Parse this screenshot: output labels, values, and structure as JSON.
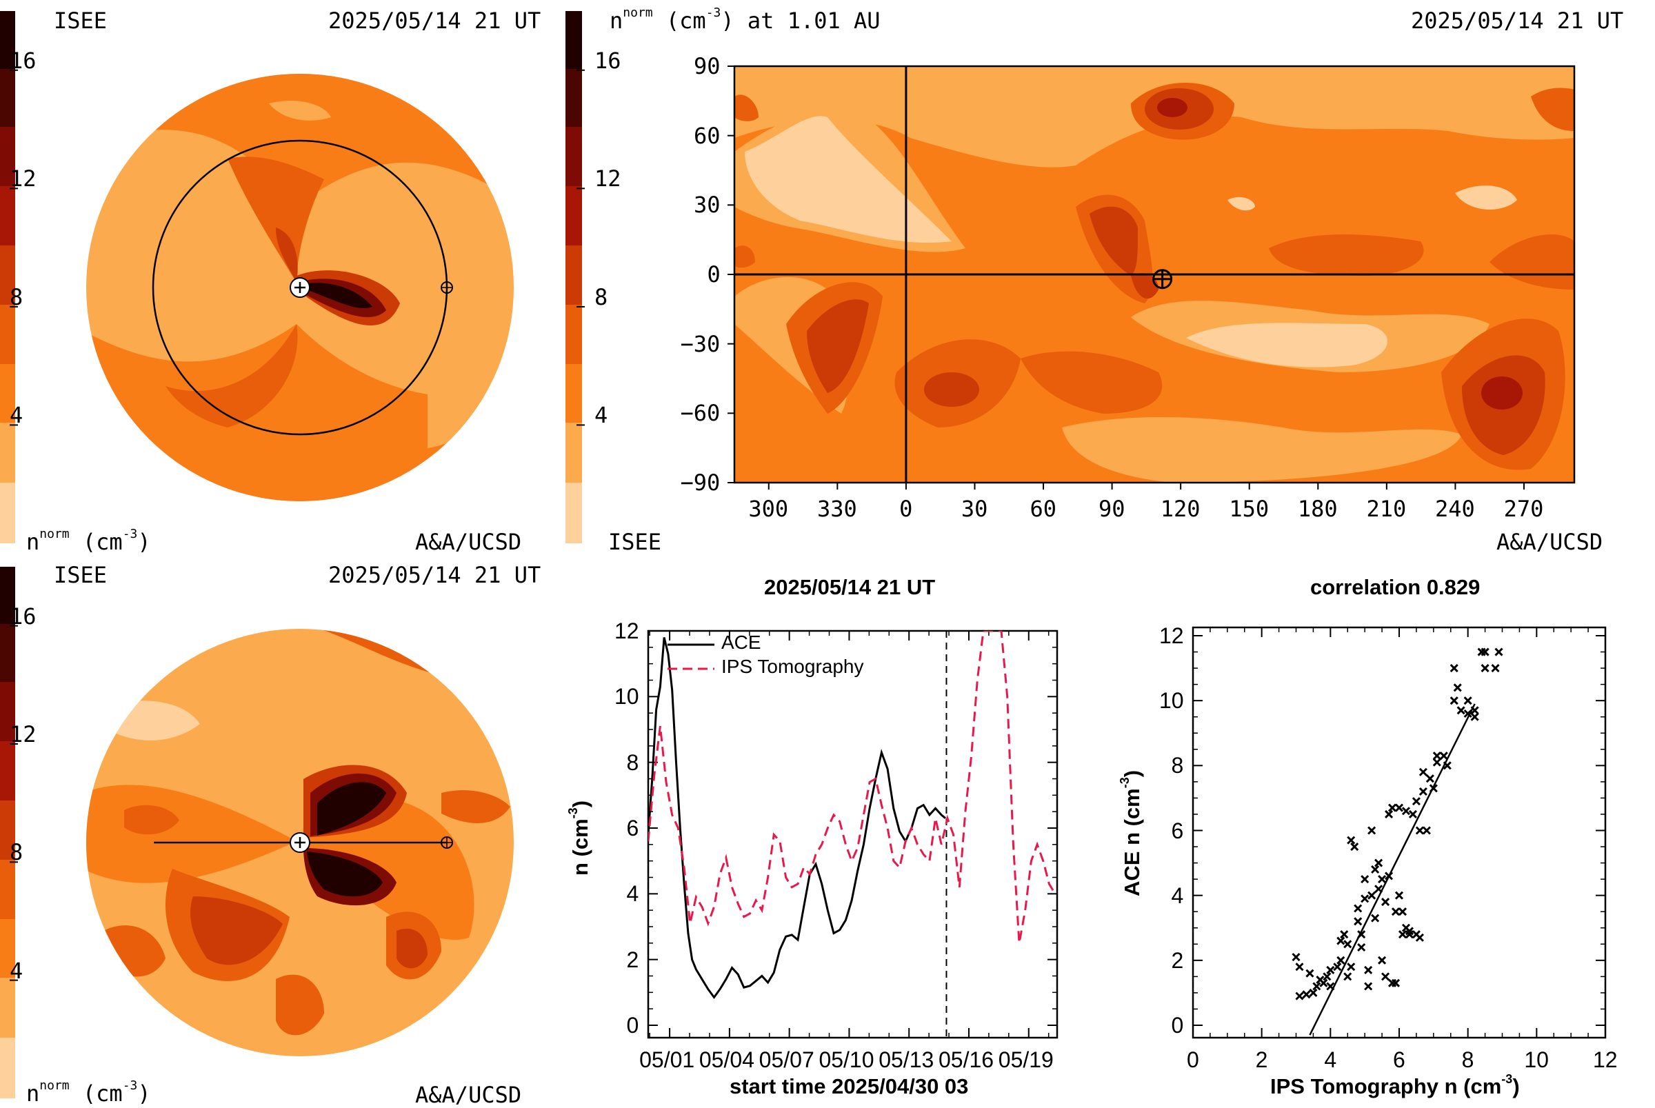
{
  "colors": {
    "levels": [
      "#fdd09c",
      "#fcaa4e",
      "#f97d16",
      "#e85e0a",
      "#cc3a06",
      "#a81606",
      "#7e0c04",
      "#4c0602",
      "#200100"
    ],
    "level_step_cm3": 2
  },
  "panel_top_left": {
    "org": "ISEE",
    "timestamp": "2025/05/14 21 UT",
    "credit": "A&A/UCSD",
    "colorbar_ticks": [
      "16",
      "12",
      "8",
      "4"
    ],
    "colorbar_tick_values": [
      16,
      12,
      8,
      4
    ],
    "colorbar_label_main": "n",
    "colorbar_label_sup": "norm",
    "colorbar_label_unit": "(cm",
    "colorbar_label_unit_sup": "-3",
    "colorbar_label_end": ")"
  },
  "panel_top_right": {
    "title_main": "n",
    "title_sup": "norm",
    "title_unit": "(cm",
    "title_unit_sup": "-3",
    "title_end": ") at 1.01 AU",
    "timestamp": "2025/05/14 21 UT",
    "org": "ISEE",
    "credit": "A&A/UCSD",
    "colorbar_ticks": [
      "16",
      "12",
      "8",
      "4"
    ],
    "colorbar_tick_values": [
      16,
      12,
      8,
      4
    ],
    "y_ticks": [
      "90",
      "60",
      "30",
      "0",
      "−30",
      "−60",
      "−90"
    ],
    "y_tick_values": [
      90,
      60,
      30,
      0,
      -30,
      -60,
      -90
    ],
    "x_ticks": [
      "300",
      "330",
      "0",
      "30",
      "60",
      "90",
      "120",
      "150",
      "180",
      "210",
      "240",
      "270"
    ],
    "x_tick_values": [
      300,
      330,
      360,
      390,
      420,
      450,
      480,
      510,
      540,
      570,
      600,
      630
    ],
    "earth_longitude": 112,
    "earth_latitude": -2,
    "vertical_line_longitude": 360
  },
  "panel_bottom_left": {
    "org": "ISEE",
    "timestamp": "2025/05/14 21 UT",
    "credit": "A&A/UCSD",
    "colorbar_ticks": [
      "16",
      "12",
      "8",
      "4"
    ],
    "colorbar_tick_values": [
      16,
      12,
      8,
      4
    ],
    "colorbar_label_main": "n",
    "colorbar_label_sup": "norm",
    "colorbar_label_unit": "(cm",
    "colorbar_label_unit_sup": "-3",
    "colorbar_label_end": ")"
  },
  "chart_data": [
    {
      "type": "line",
      "title": "2025/05/14 21 UT",
      "xlabel": "start time 2025/04/30 03",
      "ylabel_main": "n (cm",
      "ylabel_sup": "-3",
      "ylabel_end": ")",
      "xlim": [
        -0.2,
        20.3
      ],
      "ylim": [
        0,
        12
      ],
      "x_ticks": [
        "05/01",
        "05/04",
        "05/07",
        "05/10",
        "05/13",
        "05/16",
        "05/19"
      ],
      "x_tick_values": [
        0.875,
        3.875,
        6.875,
        9.875,
        12.875,
        15.875,
        18.875
      ],
      "y_ticks": [
        "12",
        "10",
        "8",
        "6",
        "4",
        "2",
        "0"
      ],
      "y_tick_values": [
        12,
        10,
        8,
        6,
        4,
        2,
        0
      ],
      "current_time_marker_x": 14.75,
      "legend": "top-left",
      "series": [
        {
          "name": "ACE",
          "style": "solid",
          "color": "#000000",
          "x": [
            -0.2,
            0.0,
            0.2,
            0.4,
            0.6,
            0.8,
            1.0,
            1.2,
            1.4,
            1.6,
            1.8,
            2.0,
            2.2,
            2.5,
            2.8,
            3.1,
            3.4,
            3.7,
            4.0,
            4.3,
            4.6,
            4.9,
            5.2,
            5.5,
            5.8,
            6.1,
            6.4,
            6.7,
            7.0,
            7.3,
            7.6,
            7.9,
            8.2,
            8.5,
            8.8,
            9.1,
            9.4,
            9.7,
            10.0,
            10.3,
            10.6,
            10.9,
            11.2,
            11.5,
            11.8,
            12.1,
            12.4,
            12.7,
            13.0,
            13.3,
            13.6,
            13.9,
            14.2,
            14.5,
            14.7
          ],
          "y": [
            5.8,
            7.5,
            9.6,
            10.3,
            11.8,
            11.3,
            10.2,
            8.0,
            6.0,
            4.3,
            2.8,
            2.0,
            1.7,
            1.4,
            1.1,
            0.85,
            1.1,
            1.4,
            1.75,
            1.55,
            1.15,
            1.2,
            1.35,
            1.5,
            1.3,
            1.6,
            2.3,
            2.7,
            2.75,
            2.6,
            3.6,
            4.6,
            4.9,
            4.3,
            3.5,
            2.8,
            2.9,
            3.2,
            3.8,
            4.7,
            5.5,
            6.6,
            7.5,
            8.3,
            7.8,
            6.6,
            5.9,
            5.6,
            6.0,
            6.6,
            6.7,
            6.4,
            6.6,
            6.4,
            6.3
          ],
          "note_range": "values from 05/01 to 05/14 21 UT"
        },
        {
          "name": "IPS Tomography",
          "style": "dashed",
          "color": "#e8194a",
          "x": [
            -0.2,
            0.1,
            0.4,
            0.7,
            1.0,
            1.3,
            1.6,
            1.9,
            2.2,
            2.5,
            2.8,
            3.1,
            3.4,
            3.7,
            4.0,
            4.3,
            4.6,
            4.9,
            5.2,
            5.5,
            5.8,
            6.1,
            6.4,
            6.7,
            7.0,
            7.3,
            7.6,
            7.9,
            8.2,
            8.5,
            8.8,
            9.1,
            9.4,
            9.7,
            10.0,
            10.3,
            10.6,
            10.9,
            11.2,
            11.5,
            11.8,
            12.1,
            12.4,
            12.7,
            13.0,
            13.3,
            13.6,
            13.9,
            14.2,
            14.5,
            14.8,
            15.1,
            15.4,
            15.7,
            16.0,
            16.3,
            16.6,
            16.9,
            17.2,
            17.5,
            17.8,
            18.1,
            18.4,
            18.7,
            19.0,
            19.3,
            19.6,
            19.9,
            20.2
          ],
          "y": [
            5.6,
            7.6,
            9.1,
            7.4,
            6.4,
            6.0,
            4.8,
            3.1,
            3.9,
            3.6,
            3.1,
            3.6,
            4.6,
            5.1,
            4.2,
            3.7,
            3.3,
            3.4,
            3.8,
            3.5,
            4.5,
            5.8,
            5.6,
            4.5,
            4.2,
            4.3,
            4.8,
            4.6,
            5.2,
            5.5,
            6.0,
            6.4,
            6.2,
            5.5,
            5.0,
            5.4,
            6.4,
            7.4,
            7.5,
            6.7,
            6.0,
            5.0,
            4.8,
            5.6,
            6.0,
            5.5,
            5.2,
            5.0,
            6.3,
            5.5,
            6.3,
            5.8,
            4.2,
            6.5,
            8.2,
            10.5,
            12.0,
            12.0,
            12.0,
            12.0,
            10.0,
            5.5,
            2.5,
            3.5,
            5.0,
            5.5,
            5.0,
            4.3,
            4.0
          ]
        }
      ]
    },
    {
      "type": "scatter",
      "title": "correlation 0.829",
      "xlabel_main": "IPS Tomography n (cm",
      "xlabel_sup": "-3",
      "xlabel_end": ")",
      "ylabel_main": "ACE n (cm",
      "ylabel_sup": "-3",
      "ylabel_end": ")",
      "xlim": [
        0,
        12
      ],
      "ylim": [
        0,
        12
      ],
      "x_ticks": [
        "0",
        "2",
        "4",
        "6",
        "8",
        "10",
        "12"
      ],
      "x_tick_values": [
        0,
        2,
        4,
        6,
        8,
        10,
        12
      ],
      "y_ticks": [
        "12",
        "10",
        "8",
        "6",
        "4",
        "2",
        "0"
      ],
      "y_tick_values": [
        12,
        10,
        8,
        6,
        4,
        2,
        0
      ],
      "fit_line": {
        "x": [
          3.4,
          8.2
        ],
        "y": [
          -0.3,
          9.9
        ]
      },
      "points": [
        [
          3.0,
          2.1
        ],
        [
          3.1,
          1.8
        ],
        [
          3.1,
          0.9
        ],
        [
          3.3,
          0.95
        ],
        [
          3.5,
          1.0
        ],
        [
          3.4,
          1.6
        ],
        [
          3.6,
          1.2
        ],
        [
          3.7,
          1.4
        ],
        [
          3.8,
          1.3
        ],
        [
          3.9,
          1.5
        ],
        [
          4.0,
          1.7
        ],
        [
          4.0,
          1.2
        ],
        [
          4.2,
          1.8
        ],
        [
          4.3,
          2.6
        ],
        [
          4.3,
          2.0
        ],
        [
          4.4,
          2.8
        ],
        [
          4.5,
          2.5
        ],
        [
          4.5,
          1.5
        ],
        [
          4.6,
          1.8
        ],
        [
          4.6,
          5.7
        ],
        [
          4.7,
          5.5
        ],
        [
          4.8,
          3.6
        ],
        [
          4.8,
          3.2
        ],
        [
          4.9,
          2.8
        ],
        [
          4.9,
          2.4
        ],
        [
          5.0,
          3.9
        ],
        [
          5.0,
          4.5
        ],
        [
          5.1,
          1.7
        ],
        [
          5.1,
          1.2
        ],
        [
          5.2,
          4.0
        ],
        [
          5.2,
          6.0
        ],
        [
          5.3,
          4.8
        ],
        [
          5.3,
          3.3
        ],
        [
          5.4,
          5.0
        ],
        [
          5.4,
          4.2
        ],
        [
          5.5,
          4.5
        ],
        [
          5.5,
          2.0
        ],
        [
          5.6,
          1.5
        ],
        [
          5.6,
          3.8
        ],
        [
          5.7,
          4.6
        ],
        [
          5.7,
          6.5
        ],
        [
          5.8,
          6.7
        ],
        [
          5.8,
          1.3
        ],
        [
          5.9,
          1.3
        ],
        [
          5.9,
          3.5
        ],
        [
          6.0,
          4.0
        ],
        [
          6.0,
          6.7
        ],
        [
          6.1,
          3.5
        ],
        [
          6.1,
          2.8
        ],
        [
          6.2,
          6.6
        ],
        [
          6.2,
          3.0
        ],
        [
          6.3,
          2.9
        ],
        [
          6.3,
          2.8
        ],
        [
          6.4,
          6.5
        ],
        [
          6.5,
          2.8
        ],
        [
          6.5,
          6.9
        ],
        [
          6.6,
          6.0
        ],
        [
          6.6,
          2.7
        ],
        [
          6.7,
          7.2
        ],
        [
          6.7,
          7.8
        ],
        [
          6.8,
          6.0
        ],
        [
          6.9,
          7.6
        ],
        [
          7.0,
          7.3
        ],
        [
          7.1,
          8.1
        ],
        [
          7.1,
          8.3
        ],
        [
          7.3,
          8.3
        ],
        [
          7.4,
          8.0
        ],
        [
          7.6,
          10.0
        ],
        [
          7.8,
          9.7
        ],
        [
          7.7,
          10.4
        ],
        [
          8.0,
          9.6
        ],
        [
          8.2,
          9.7
        ],
        [
          8.0,
          10.0
        ],
        [
          8.2,
          9.5
        ],
        [
          7.6,
          11.0
        ],
        [
          8.5,
          11.0
        ],
        [
          8.4,
          11.5
        ],
        [
          8.9,
          11.5
        ],
        [
          8.8,
          11.0
        ],
        [
          8.5,
          11.5
        ]
      ]
    }
  ]
}
